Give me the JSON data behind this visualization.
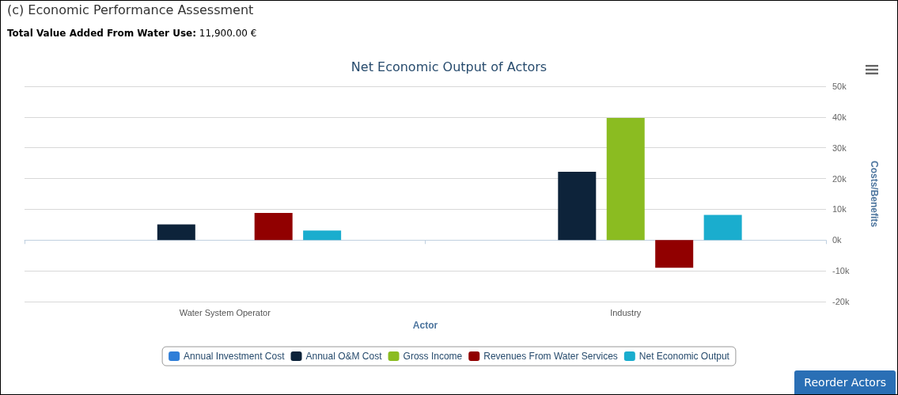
{
  "chart_data": {
    "type": "bar",
    "title": "Net Economic Output of Actors",
    "xlabel": "Actor",
    "ylabel": "Costs/Benefits",
    "annotations": [
      "(c) Economic Performance Assessment",
      "Total Value Added From Water Use: 11,900.00 €",
      "Reorder Actors"
    ],
    "categories": [
      "Water System Operator",
      "Industry"
    ],
    "series": [
      {
        "name": "Annual Investment Cost",
        "color": "#2f7ed8",
        "values": [
          0,
          0
        ]
      },
      {
        "name": "Annual O&M Cost",
        "color": "#0d233a",
        "values": [
          5100,
          22200
        ]
      },
      {
        "name": "Gross Income",
        "color": "#8bbc21",
        "values": [
          0,
          39700
        ]
      },
      {
        "name": "Revenues From Water Services",
        "color": "#910000",
        "values": [
          8800,
          -9000
        ]
      },
      {
        "name": "Net Economic Output",
        "color": "#1aadce",
        "values": [
          3100,
          8200
        ]
      }
    ],
    "ylim": [
      -20000,
      50000
    ],
    "yticks": [
      {
        "value": -20000,
        "label": "-20k"
      },
      {
        "value": -10000,
        "label": "-10k"
      },
      {
        "value": 0,
        "label": "0k"
      },
      {
        "value": 10000,
        "label": "10k"
      },
      {
        "value": 20000,
        "label": "20k"
      },
      {
        "value": 30000,
        "label": "30k"
      },
      {
        "value": 40000,
        "label": "40k"
      },
      {
        "value": 50000,
        "label": "50k"
      }
    ],
    "grid": "y",
    "legend": "bottom"
  }
}
